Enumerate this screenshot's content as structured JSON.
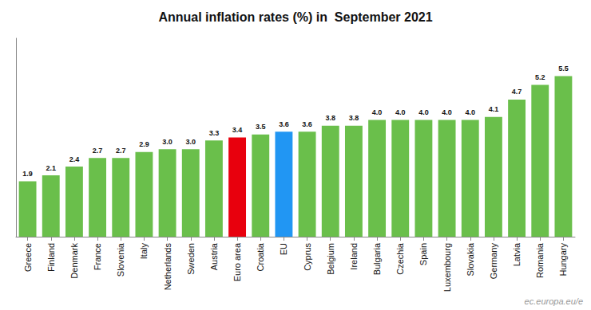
{
  "chart_data": {
    "type": "bar",
    "title": "Annual inflation rates (%) in  September 2021",
    "categories": [
      "Greece",
      "Finland",
      "Denmark",
      "France",
      "Slovenia",
      "Italy",
      "Netherlands",
      "Sweden",
      "Austria",
      "Euro area",
      "Croatia",
      "EU",
      "Cyprus",
      "Belgium",
      "Ireland",
      "Bulgaria",
      "Czechia",
      "Spain",
      "Luxembourg",
      "Slovakia",
      "Germany",
      "Latvia",
      "Romania",
      "Hungary"
    ],
    "values": [
      1.9,
      2.1,
      2.4,
      2.7,
      2.7,
      2.9,
      3.0,
      3.0,
      3.3,
      3.4,
      3.5,
      3.6,
      3.6,
      3.8,
      3.8,
      4.0,
      4.0,
      4.0,
      4.0,
      4.0,
      4.1,
      4.7,
      5.2,
      5.5
    ],
    "value_labels": [
      "1.9",
      "2.1",
      "2.4",
      "2.7",
      "2.7",
      "2.9",
      "3.0",
      "3.0",
      "3.3",
      "3.4",
      "3.5",
      "3.6",
      "3.6",
      "3.8",
      "3.8",
      "4.0",
      "4.0",
      "4.0",
      "4.0",
      "4.0",
      "4.1",
      "4.7",
      "5.2",
      "5.5"
    ],
    "colors": [
      "#6abf4b",
      "#6abf4b",
      "#6abf4b",
      "#6abf4b",
      "#6abf4b",
      "#6abf4b",
      "#6abf4b",
      "#6abf4b",
      "#6abf4b",
      "#e8000d",
      "#6abf4b",
      "#2196f3",
      "#6abf4b",
      "#6abf4b",
      "#6abf4b",
      "#6abf4b",
      "#6abf4b",
      "#6abf4b",
      "#6abf4b",
      "#6abf4b",
      "#6abf4b",
      "#6abf4b",
      "#6abf4b",
      "#6abf4b"
    ],
    "ylim": [
      0,
      6.8
    ],
    "data_labels": true,
    "tick_labels": "x",
    "grid": false,
    "annotations": [
      "ec.europa.eu/e"
    ]
  }
}
